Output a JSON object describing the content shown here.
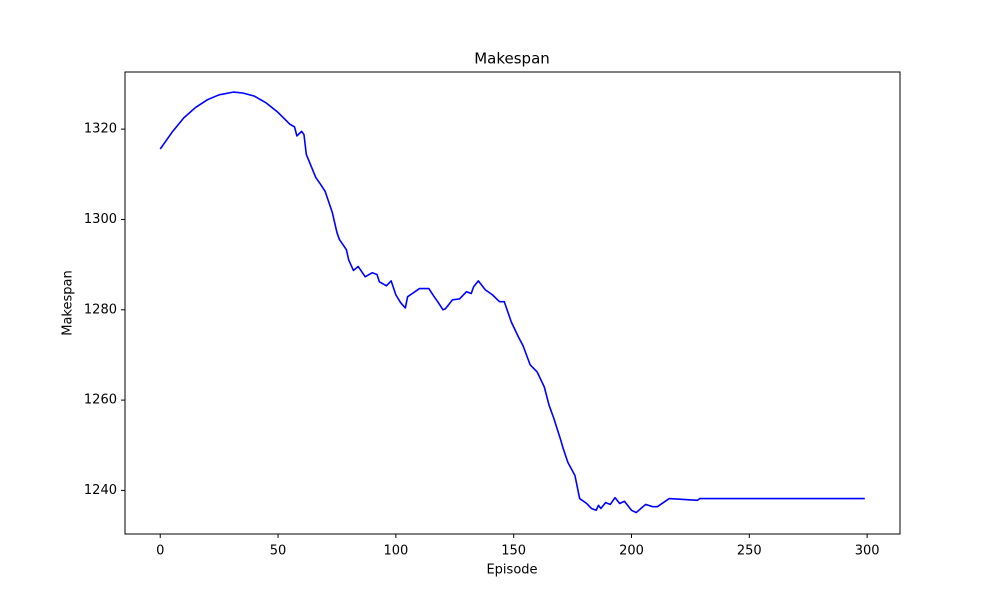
{
  "chart_data": {
    "type": "line",
    "title": "Makespan",
    "x_label": "Episode",
    "y_label": "Makespan",
    "color": "#0000ff",
    "x": [
      0,
      5,
      10,
      15,
      20,
      25,
      31,
      35,
      40,
      45,
      50,
      55,
      57,
      58,
      60,
      61,
      62,
      66,
      68,
      70,
      73,
      75,
      76,
      79,
      80,
      82,
      84,
      87,
      90,
      92,
      93,
      96,
      98,
      100,
      102,
      104,
      105,
      107,
      110,
      114,
      116,
      118,
      120,
      121,
      124,
      127,
      130,
      132,
      133,
      135,
      138,
      141,
      144,
      146,
      149,
      152,
      154,
      157,
      160,
      163,
      165,
      167,
      170,
      171,
      173,
      176,
      178,
      181,
      183,
      185,
      186,
      187,
      189,
      191,
      193,
      195,
      197,
      200,
      202,
      204,
      206,
      209,
      211,
      216,
      228,
      229,
      299
    ],
    "values": [
      1315.6,
      1319.3,
      1322.5,
      1324.8,
      1326.5,
      1327.6,
      1328.2,
      1328.0,
      1327.3,
      1325.8,
      1323.7,
      1321.1,
      1320.5,
      1318.5,
      1319.5,
      1318.8,
      1314.4,
      1309.3,
      1307.8,
      1306.2,
      1301.6,
      1297.1,
      1295.6,
      1293.3,
      1291.0,
      1288.7,
      1289.6,
      1287.3,
      1288.2,
      1287.8,
      1286.2,
      1285.3,
      1286.4,
      1283.3,
      1281.6,
      1280.4,
      1282.9,
      1283.6,
      1284.7,
      1284.7,
      1283.1,
      1281.6,
      1280.0,
      1280.2,
      1282.2,
      1282.4,
      1284.0,
      1283.6,
      1285.1,
      1286.4,
      1284.4,
      1283.3,
      1281.8,
      1281.8,
      1277.3,
      1274.0,
      1272.0,
      1267.8,
      1266.2,
      1262.9,
      1258.9,
      1256.0,
      1251.1,
      1249.3,
      1246.2,
      1243.3,
      1238.2,
      1237.1,
      1236.0,
      1235.6,
      1236.7,
      1236.0,
      1237.3,
      1236.9,
      1238.4,
      1237.1,
      1237.6,
      1235.6,
      1235.1,
      1236.0,
      1236.9,
      1236.4,
      1236.4,
      1238.2,
      1237.8,
      1238.2,
      1238.2
    ],
    "xlim": [
      -14.95,
      313.95
    ],
    "ylim": [
      1230.35,
      1332.65
    ],
    "xticks": [
      0,
      50,
      100,
      150,
      200,
      250,
      300
    ],
    "yticks": [
      1240,
      1260,
      1280,
      1300,
      1320
    ]
  }
}
